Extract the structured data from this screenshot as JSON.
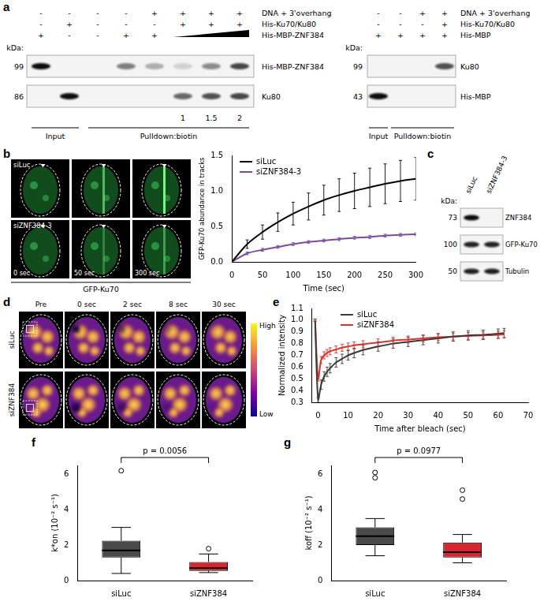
{
  "panel_labels": [
    "a",
    "b",
    "c",
    "d",
    "e",
    "f",
    "g"
  ],
  "panel_a": {
    "left": {
      "rows": [
        {
          "label": "DNA + 3'overhang",
          "signs": [
            "-",
            "-",
            "-",
            "-",
            "+",
            "+",
            "+",
            "+"
          ]
        },
        {
          "label": "His-Ku70/Ku80",
          "signs": [
            "-",
            "+",
            "-",
            "-",
            "-",
            "+",
            "+",
            "+"
          ]
        },
        {
          "label": "His-MBP-ZNF384",
          "signs": [
            "+",
            "-",
            "-",
            "+",
            "+",
            null,
            null,
            null
          ]
        }
      ],
      "kda_label": "kDa:",
      "blots": [
        {
          "kda": 99,
          "label": "His-MBP-ZNF384",
          "bands": [
            1,
            0,
            0,
            0.5,
            0.3,
            0.15,
            0.45,
            0.75
          ]
        },
        {
          "kda": 86,
          "label": "Ku80",
          "bands": [
            0,
            1,
            0,
            0,
            0,
            0.6,
            0.7,
            0.75
          ]
        }
      ],
      "lane_numbers": [
        null,
        null,
        null,
        null,
        null,
        1,
        1.5,
        2
      ],
      "groups": [
        {
          "label": "Input",
          "lanes": 2
        },
        {
          "label": "Pulldown:biotin",
          "lanes": 6
        }
      ]
    },
    "right": {
      "rows": [
        {
          "label": "DNA + 3'overhang",
          "signs": [
            "-",
            "-",
            "+",
            "+"
          ]
        },
        {
          "label": "His-Ku70/Ku80",
          "signs": [
            "-",
            "-",
            "-",
            "+"
          ]
        },
        {
          "label": "His-MBP",
          "signs": [
            "+",
            "+",
            "+",
            "+"
          ]
        }
      ],
      "kda_label": "kDa:",
      "blots": [
        {
          "kda": 99,
          "label": "Ku80",
          "bands": [
            0,
            0,
            0,
            0.7
          ]
        },
        {
          "kda": 43,
          "label": "His-MBP",
          "bands": [
            1,
            0,
            0,
            0
          ]
        }
      ],
      "groups": [
        {
          "label": "Input",
          "lanes": 1
        },
        {
          "label": "Pulldown:biotin",
          "lanes": 3
        }
      ]
    }
  },
  "panel_b_images": {
    "rows": [
      "siLuc",
      "siZNF384-3"
    ],
    "times": [
      "0 sec",
      "50 sec",
      "300 sec"
    ],
    "marker": "GFP-Ku70"
  },
  "panel_c": {
    "columns": [
      "siLuc",
      "siZNF384-3"
    ],
    "kda_label": "kDa:",
    "blots": [
      {
        "kda": 73,
        "label": "ZNF384",
        "bands": [
          1,
          0
        ]
      },
      {
        "kda": 100,
        "label": "GFP-Ku70",
        "bands": [
          0.9,
          0.9
        ]
      },
      {
        "kda": 50,
        "label": "Tubulin",
        "bands": [
          0.9,
          0.9
        ]
      }
    ]
  },
  "panel_d": {
    "columns": [
      "Pre",
      "0 sec",
      "2 sec",
      "8 sec",
      "30 sec"
    ],
    "rows": [
      "siLuc",
      "siZNF384"
    ],
    "colorbar": [
      "High",
      "Low"
    ]
  },
  "chart_data": [
    {
      "type": "line",
      "x_label": "Time (sec)",
      "y_label": "GFP-Ku70 abundance in tracks",
      "x": [
        0,
        25,
        50,
        75,
        100,
        125,
        150,
        175,
        200,
        225,
        250,
        275,
        300
      ],
      "series": [
        {
          "name": "siLuc",
          "color": "#000000",
          "values": [
            0,
            0.25,
            0.42,
            0.56,
            0.68,
            0.78,
            0.87,
            0.94,
            1.0,
            1.05,
            1.1,
            1.14,
            1.17
          ],
          "errors": [
            0,
            0.06,
            0.1,
            0.13,
            0.16,
            0.19,
            0.21,
            0.23,
            0.25,
            0.27,
            0.28,
            0.29,
            0.3
          ]
        },
        {
          "name": "siZNF384-3",
          "color": "#7a4b9e",
          "values": [
            0,
            0.12,
            0.17,
            0.21,
            0.25,
            0.28,
            0.3,
            0.32,
            0.34,
            0.35,
            0.37,
            0.38,
            0.39
          ],
          "errors": [
            0,
            0.02,
            0.02,
            0.02,
            0.02,
            0.02,
            0.02,
            0.02,
            0.02,
            0.02,
            0.02,
            0.02,
            0.02
          ]
        }
      ],
      "xlim": [
        0,
        300
      ],
      "xticks": [
        0,
        50,
        100,
        150,
        200,
        250,
        300
      ],
      "ylim": [
        0,
        1.5
      ],
      "yticks": [
        {
          "value": 0,
          "label": "0.0"
        },
        0.5,
        {
          "value": 1,
          "label": "1.0"
        },
        1.5
      ],
      "legend": "top-left",
      "grid": false
    },
    {
      "type": "line",
      "x_label": "Time after bleach (sec)",
      "y_label": "Normalized intensity",
      "x": [
        -1,
        0,
        1,
        2,
        3,
        4,
        6,
        8,
        10,
        12,
        15,
        20,
        25,
        30,
        35,
        40,
        45,
        50,
        55,
        60,
        62
      ],
      "series": [
        {
          "name": "siLuc",
          "color": "#3a3a3a",
          "values": [
            1.0,
            0.32,
            0.45,
            0.52,
            0.56,
            0.59,
            0.64,
            0.67,
            0.7,
            0.72,
            0.745,
            0.775,
            0.8,
            0.815,
            0.83,
            0.845,
            0.86,
            0.87,
            0.875,
            0.885,
            0.89
          ],
          "errors": [
            0.01,
            0.02,
            0.04,
            0.04,
            0.04,
            0.04,
            0.04,
            0.04,
            0.04,
            0.04,
            0.04,
            0.04,
            0.04,
            0.04,
            0.04,
            0.04,
            0.04,
            0.04,
            0.04,
            0.04,
            0.04
          ]
        },
        {
          "name": "siZNF384",
          "color": "#e0322b",
          "values": [
            1.0,
            0.5,
            0.66,
            0.7,
            0.72,
            0.735,
            0.75,
            0.765,
            0.775,
            0.785,
            0.795,
            0.81,
            0.825,
            0.835,
            0.845,
            0.855,
            0.86,
            0.865,
            0.87,
            0.875,
            0.88
          ],
          "errors": [
            0.01,
            0.02,
            0.03,
            0.03,
            0.03,
            0.03,
            0.03,
            0.03,
            0.03,
            0.03,
            0.03,
            0.03,
            0.03,
            0.03,
            0.03,
            0.03,
            0.03,
            0.03,
            0.03,
            0.03,
            0.03
          ]
        }
      ],
      "xlim": [
        -2,
        70
      ],
      "xticks": [
        0,
        10,
        20,
        30,
        40,
        50,
        60,
        70
      ],
      "ylim": [
        0.3,
        1.1
      ],
      "yticks": [
        0.3,
        0.4,
        0.5,
        0.6,
        0.7,
        0.8,
        0.9,
        {
          "value": 1,
          "label": "1.0"
        },
        1.1
      ],
      "legend": "top-left",
      "grid": false
    },
    {
      "type": "box",
      "y_label": "k*on (10⁻² s⁻¹)",
      "categories": [
        "siLuc",
        "siZNF384"
      ],
      "boxes": [
        {
          "whisker_low": 0.4,
          "q1": 1.3,
          "median": 1.7,
          "q3": 2.25,
          "whisker_high": 3.0,
          "outliers": [
            6.2
          ]
        },
        {
          "whisker_low": 0.45,
          "q1": 0.55,
          "median": 0.7,
          "q3": 1.05,
          "whisker_high": 1.5,
          "outliers": [
            1.8
          ]
        }
      ],
      "colors": [
        "#4a4a4a",
        "#d9262e"
      ],
      "ylim": [
        0,
        6.5
      ],
      "yticks": [
        0,
        2,
        4,
        6
      ],
      "annotations": [
        "p = 0.0056"
      ],
      "grid": false
    },
    {
      "type": "box",
      "y_label": "koff (10⁻² s⁻¹)",
      "categories": [
        "siLuc",
        "siZNF384"
      ],
      "boxes": [
        {
          "whisker_low": 1.4,
          "q1": 2.0,
          "median": 2.5,
          "q3": 3.0,
          "whisker_high": 3.5,
          "outliers": [
            5.8,
            6.1
          ]
        },
        {
          "whisker_low": 1.0,
          "q1": 1.3,
          "median": 1.6,
          "q3": 2.15,
          "whisker_high": 2.6,
          "outliers": [
            4.6,
            5.1
          ]
        }
      ],
      "colors": [
        "#4a4a4a",
        "#d9262e"
      ],
      "ylim": [
        0,
        6.5
      ],
      "yticks": [
        0,
        2,
        4,
        6
      ],
      "annotations": [
        "p = 0.0977"
      ],
      "grid": false
    }
  ]
}
